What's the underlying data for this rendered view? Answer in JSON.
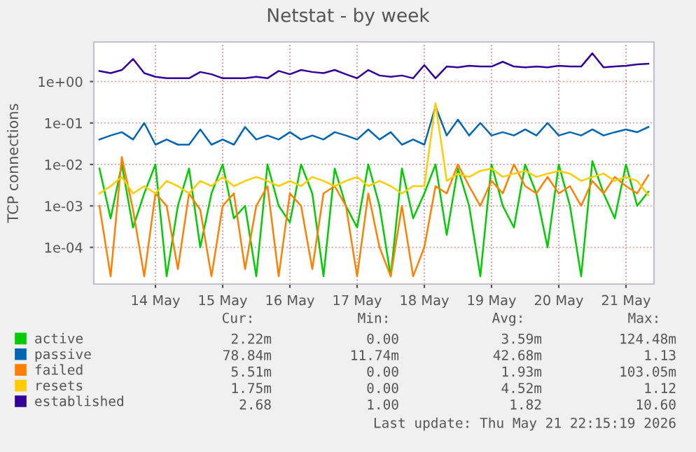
{
  "chart_data": {
    "type": "line",
    "title": "Netstat - by week",
    "ylabel": "TCP connections",
    "x": [
      "2026-05-13T16:00",
      "2026-05-13T20:00",
      "2026-05-14T00:00",
      "2026-05-14T04:00",
      "2026-05-14T08:00",
      "2026-05-14T12:00",
      "2026-05-14T16:00",
      "2026-05-14T20:00",
      "2026-05-15T00:00",
      "2026-05-15T04:00",
      "2026-05-15T08:00",
      "2026-05-15T12:00",
      "2026-05-15T16:00",
      "2026-05-15T20:00",
      "2026-05-16T00:00",
      "2026-05-16T04:00",
      "2026-05-16T08:00",
      "2026-05-16T12:00",
      "2026-05-16T16:00",
      "2026-05-16T20:00",
      "2026-05-17T00:00",
      "2026-05-17T04:00",
      "2026-05-17T08:00",
      "2026-05-17T12:00",
      "2026-05-17T16:00",
      "2026-05-17T20:00",
      "2026-05-18T00:00",
      "2026-05-18T04:00",
      "2026-05-18T08:00",
      "2026-05-18T12:00",
      "2026-05-18T16:00",
      "2026-05-18T20:00",
      "2026-05-19T00:00",
      "2026-05-19T04:00",
      "2026-05-19T08:00",
      "2026-05-19T12:00",
      "2026-05-19T16:00",
      "2026-05-19T20:00",
      "2026-05-20T00:00",
      "2026-05-20T04:00",
      "2026-05-20T08:00",
      "2026-05-20T12:00",
      "2026-05-20T16:00",
      "2026-05-20T20:00",
      "2026-05-21T00:00",
      "2026-05-21T04:00",
      "2026-05-21T08:00",
      "2026-05-21T12:00",
      "2026-05-21T16:00",
      "2026-05-21T20:00"
    ],
    "series": [
      {
        "name": "active",
        "color": "#00cc00",
        "values": [
          0.008,
          0.0005,
          0.01,
          0.0003,
          0.002,
          0.01,
          2e-05,
          0.001,
          0.008,
          0.0001,
          0.002,
          0.01,
          0.0005,
          0.001,
          2e-05,
          0.01,
          0.001,
          0.0004,
          0.01,
          0.002,
          2e-05,
          0.008,
          0.001,
          0.0003,
          0.01,
          0.001,
          2e-05,
          0.008,
          0.0005,
          0.002,
          0.01,
          0.0002,
          0.008,
          0.001,
          2e-05,
          0.01,
          0.001,
          0.0003,
          0.01,
          0.002,
          0.0001,
          0.01,
          0.001,
          2e-05,
          0.012,
          0.002,
          0.0005,
          0.01,
          0.001,
          0.0022
        ]
      },
      {
        "name": "passive",
        "color": "#0066b3",
        "values": [
          0.04,
          0.05,
          0.06,
          0.04,
          0.1,
          0.03,
          0.04,
          0.03,
          0.03,
          0.07,
          0.03,
          0.04,
          0.03,
          0.08,
          0.04,
          0.05,
          0.04,
          0.06,
          0.04,
          0.05,
          0.04,
          0.06,
          0.05,
          0.04,
          0.07,
          0.04,
          0.06,
          0.03,
          0.04,
          0.03,
          0.25,
          0.05,
          0.12,
          0.05,
          0.1,
          0.05,
          0.06,
          0.05,
          0.07,
          0.05,
          0.1,
          0.05,
          0.06,
          0.05,
          0.07,
          0.05,
          0.06,
          0.07,
          0.06,
          0.08
        ]
      },
      {
        "name": "failed",
        "color": "#ff8000",
        "values": [
          0.001,
          2e-05,
          0.015,
          0.0008,
          2e-05,
          0.002,
          0.001,
          3e-05,
          0.002,
          0.0008,
          2e-05,
          0.001,
          0.002,
          3e-05,
          0.001,
          0.003,
          2e-05,
          0.002,
          0.001,
          3e-05,
          0.002,
          0.003,
          0.001,
          2e-05,
          0.002,
          0.0001,
          2e-05,
          0.001,
          2e-05,
          0.0001,
          0.003,
          0.002,
          0.01,
          0.003,
          0.001,
          0.004,
          0.002,
          0.01,
          0.003,
          0.002,
          0.005,
          0.002,
          0.003,
          0.001,
          0.004,
          0.002,
          0.005,
          0.003,
          0.002,
          0.0055
        ]
      },
      {
        "name": "resets",
        "color": "#ffcc00",
        "values": [
          0.002,
          0.003,
          0.005,
          0.002,
          0.003,
          0.002,
          0.004,
          0.003,
          0.002,
          0.004,
          0.003,
          0.005,
          0.003,
          0.004,
          0.005,
          0.004,
          0.003,
          0.004,
          0.003,
          0.005,
          0.004,
          0.003,
          0.004,
          0.005,
          0.003,
          0.004,
          0.003,
          0.002,
          0.003,
          0.003,
          0.3,
          0.004,
          0.006,
          0.005,
          0.007,
          0.008,
          0.005,
          0.006,
          0.007,
          0.005,
          0.006,
          0.007,
          0.006,
          0.004,
          0.005,
          0.006,
          0.004,
          0.005,
          0.004,
          0.0018
        ]
      },
      {
        "name": "established",
        "color": "#330099",
        "values": [
          1.8,
          1.6,
          1.9,
          3.5,
          1.6,
          1.3,
          1.2,
          1.2,
          1.2,
          1.7,
          1.5,
          1.2,
          1.2,
          1.2,
          1.3,
          1.2,
          1.8,
          1.5,
          1.9,
          1.7,
          1.6,
          1.9,
          1.5,
          1.2,
          1.9,
          1.4,
          1.3,
          1.4,
          1.2,
          2.5,
          1.2,
          2.3,
          2.2,
          2.4,
          2.3,
          2.3,
          3.0,
          2.3,
          2.2,
          2.3,
          2.2,
          2.4,
          2.3,
          2.3,
          4.8,
          2.2,
          2.3,
          2.4,
          2.6,
          2.7
        ]
      }
    ],
    "log": "y",
    "xlim": [
      "2026-05-13T14:00",
      "2026-05-21T22:00"
    ],
    "xticks": [
      {
        "value": "2026-05-14T12:00",
        "label": "14 May"
      },
      {
        "value": "2026-05-15T12:00",
        "label": "15 May"
      },
      {
        "value": "2026-05-16T12:00",
        "label": "16 May"
      },
      {
        "value": "2026-05-17T12:00",
        "label": "17 May"
      },
      {
        "value": "2026-05-18T12:00",
        "label": "18 May"
      },
      {
        "value": "2026-05-19T12:00",
        "label": "19 May"
      },
      {
        "value": "2026-05-20T12:00",
        "label": "20 May"
      },
      {
        "value": "2026-05-21T12:00",
        "label": "21 May"
      }
    ],
    "ylim": [
      1.3e-05,
      9
    ],
    "yticks": [
      {
        "value": 0.0001,
        "label": "1e-04"
      },
      {
        "value": 0.001,
        "label": "1e-03"
      },
      {
        "value": 0.01,
        "label": "1e-02"
      },
      {
        "value": 0.1,
        "label": "1e-01"
      },
      {
        "value": 1,
        "label": "1e+00"
      }
    ],
    "grid": true,
    "legend": "bottom left",
    "marker": "none",
    "line_style": "solid",
    "annotations": [
      "Cur:",
      "Min:",
      "Avg:",
      "Max:",
      "2.22m",
      "0.00",
      "3.59m",
      "124.48m",
      "78.84m",
      "11.74m",
      "42.68m",
      "1.13",
      "5.51m",
      "0.00",
      "1.93m",
      "103.05m",
      "1.75m",
      "0.00",
      "4.52m",
      "1.12",
      "2.68",
      "1.00",
      "1.82",
      "10.60",
      "Last update: Thu May 21 22:15:19 2026"
    ]
  }
}
